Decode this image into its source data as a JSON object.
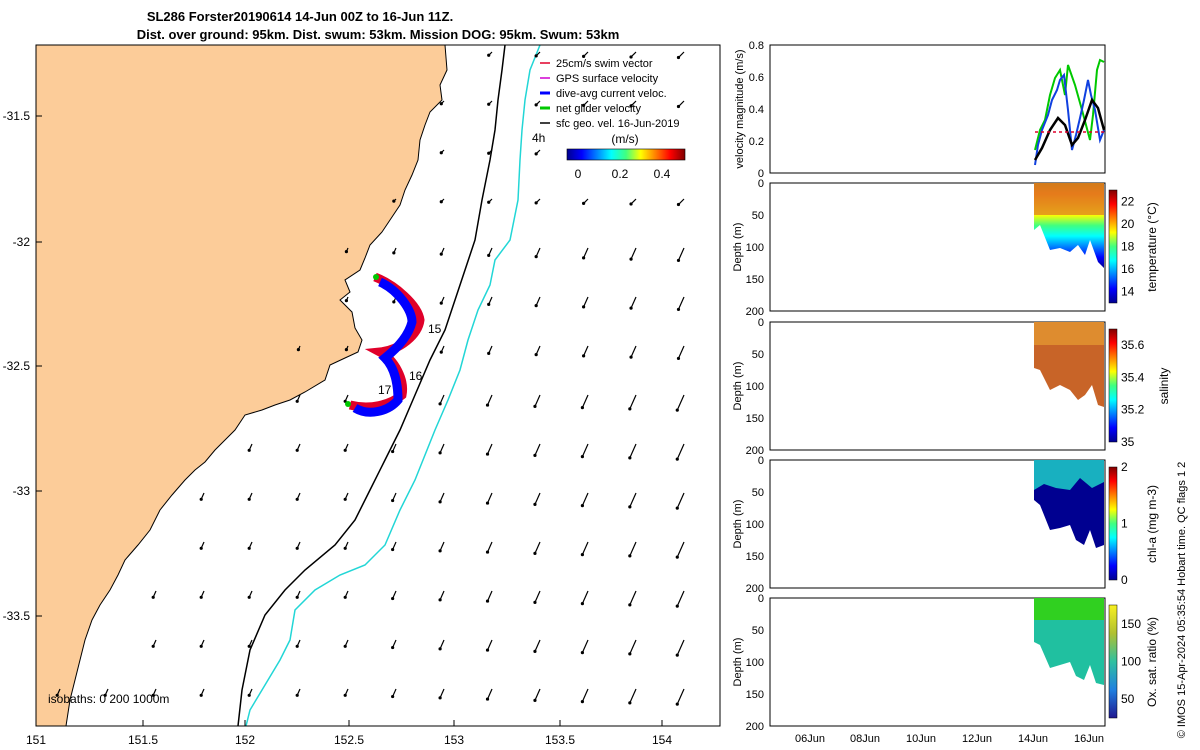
{
  "title_line1": "SL286 Forster20190614 14-Jun 00Z to 16-Jun 11Z.",
  "title_line2": "Dist. over ground: 95km. Dist. swum: 53km. Mission DOG: 95km. Swum: 53km",
  "map": {
    "lon_ticks": [
      "151",
      "151.5",
      "152",
      "152.5",
      "153",
      "153.5",
      "154"
    ],
    "lat_ticks": [
      "-31.5",
      "-32",
      "-32.5",
      "-33",
      "-33.5"
    ],
    "legend": [
      "25cm/s swim vector",
      "GPS surface velocity",
      "dive-avg current veloc.",
      "net glider velocity",
      "sfc geo. vel. 16-Jun-2019"
    ],
    "legend_colors": [
      "#e0002a",
      "#d000d0",
      "#0000ff",
      "#00c800",
      "#000000"
    ],
    "colorbar_label": "(m/s)",
    "colorbar_ticks": [
      "0",
      "0.2",
      "0.4"
    ],
    "day_labels": [
      "15",
      "16",
      "17"
    ],
    "corner_label": "4h",
    "isobaths_label": "isobaths: 0   200  1000m",
    "land_color": "#fccc99",
    "isobath_200_color": "#000000",
    "isobath_1000_color": "#22d6d6"
  },
  "panels": {
    "x_ticks": [
      "06Jun",
      "08Jun",
      "10Jun",
      "12Jun",
      "14Jun",
      "16Jun"
    ],
    "velocity": {
      "ylabel": "velocity magnitude (m/s)",
      "yticks": [
        "0",
        "0.2",
        "0.4",
        "0.6",
        "0.8"
      ]
    },
    "depth_ylabel": "Depth (m)",
    "depth_ticks": [
      "0",
      "50",
      "100",
      "150",
      "200"
    ],
    "temperature": {
      "label": "temperature (°C)",
      "cbar_ticks": [
        "14",
        "16",
        "18",
        "20",
        "22"
      ]
    },
    "salinity": {
      "label": "salinity",
      "cbar_ticks": [
        "35",
        "35.2",
        "35.4",
        "35.6"
      ]
    },
    "chla": {
      "label": "chl-a (mg m-3)",
      "cbar_ticks": [
        "0",
        "1",
        "2"
      ]
    },
    "oxygen": {
      "label": "Ox. sat. ratio (%)",
      "cbar_ticks": [
        "50",
        "100",
        "150"
      ]
    }
  },
  "side_note": "© IMOS 15-Apr-2024 05:35:54 Hobart time. QC flags 1  2",
  "chart_data": [
    {
      "type": "map",
      "title": "SL286 Forster20190614 14-Jun 00Z to 16-Jun 11Z.",
      "xlim": [
        151,
        154.3
      ],
      "ylim": [
        -33.95,
        -31.15
      ],
      "track_day_labels": [
        {
          "day": "15",
          "lon": 152.82,
          "lat": -32.4
        },
        {
          "day": "16",
          "lon": 152.78,
          "lat": -32.55
        },
        {
          "day": "17",
          "lon": 152.63,
          "lat": -32.6
        }
      ]
    },
    {
      "type": "line",
      "ylabel": "velocity magnitude (m/s)",
      "ylim": [
        0,
        0.8
      ],
      "x": [
        "14Jun",
        "14.5Jun",
        "15Jun",
        "15.5Jun",
        "16Jun",
        "16.4Jun"
      ],
      "series": [
        {
          "values": [
            0.05,
            0.25,
            0.55,
            0.45,
            0.6,
            0.65
          ]
        },
        {
          "values": [
            0.02,
            0.2,
            0.4,
            0.2,
            0.55,
            0.25
          ]
        },
        {
          "values": [
            0.08,
            0.18,
            0.32,
            0.2,
            0.45,
            0.3
          ]
        }
      ]
    },
    {
      "type": "heatmap",
      "label": "temperature (°C)",
      "clim": [
        13,
        23
      ]
    },
    {
      "type": "heatmap",
      "label": "salinity",
      "clim": [
        35,
        35.7
      ]
    },
    {
      "type": "heatmap",
      "label": "chl-a (mg m-3)",
      "clim": [
        0,
        2
      ]
    },
    {
      "type": "heatmap",
      "label": "Ox. sat. ratio (%)",
      "clim": [
        25,
        175
      ]
    }
  ]
}
